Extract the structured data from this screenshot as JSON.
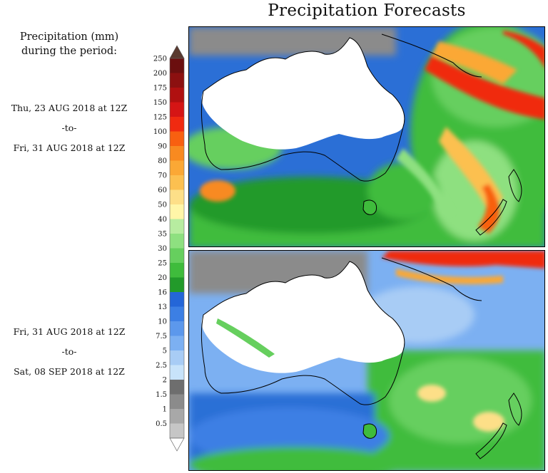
{
  "title": "Precipitation Forecasts",
  "legend": {
    "title_line1": "Precipitation (mm)",
    "title_line2": "during the period:",
    "levels": [
      "250",
      "200",
      "175",
      "150",
      "125",
      "100",
      "90",
      "80",
      "70",
      "60",
      "50",
      "40",
      "35",
      "30",
      "25",
      "20",
      "16",
      "13",
      "10",
      "7.5",
      "5",
      "2.5",
      "2",
      "1.5",
      "1",
      "0.5"
    ],
    "colors": [
      "#6b0f0f",
      "#8c1010",
      "#b01010",
      "#d51515",
      "#f02a10",
      "#f86010",
      "#f88a20",
      "#fba835",
      "#fcc050",
      "#fddf88",
      "#fff6a8",
      "#b7eca0",
      "#8ee080",
      "#66cf5e",
      "#3fbc3c",
      "#229a2a",
      "#2466d8",
      "#3c7fe4",
      "#5c98ec",
      "#7cb0f2",
      "#a8ccf5",
      "#c8e3fa",
      "#6e6e6e",
      "#8b8b8b",
      "#a8a8a8",
      "#c6c6c6"
    ],
    "top_arrow_color": "#5a3a30"
  },
  "periods": [
    {
      "start": "Thu, 23 AUG 2018 at 12Z",
      "sep": "-to-",
      "end": "Fri, 31 AUG 2018 at 12Z"
    },
    {
      "start": "Fri, 31 AUG 2018 at 12Z",
      "sep": "-to-",
      "end": "Sat, 08 SEP 2018 at 12Z"
    }
  ]
}
